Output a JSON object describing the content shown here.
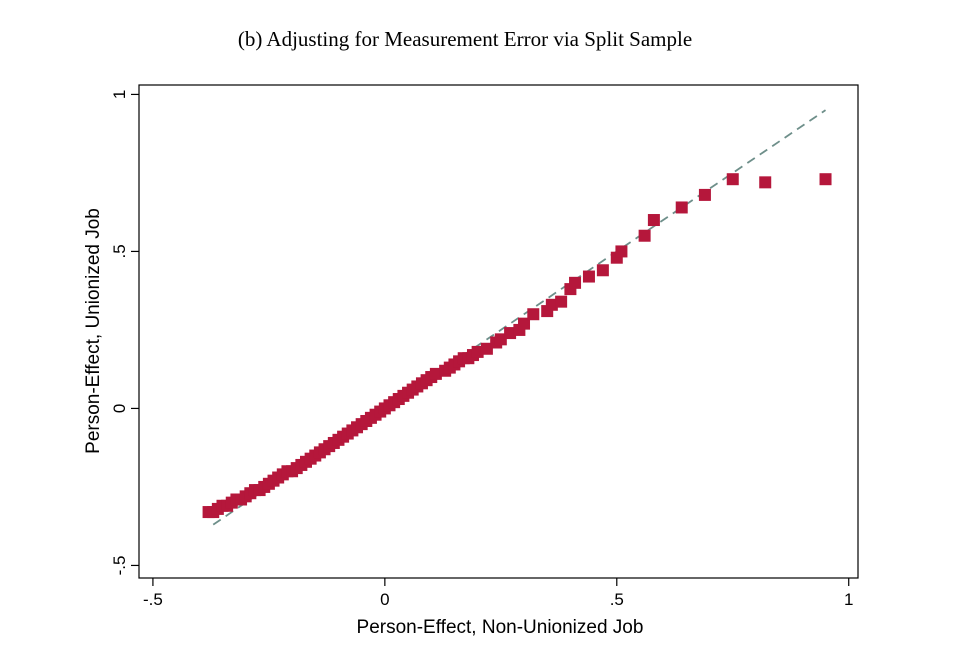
{
  "chart_data": {
    "type": "scatter",
    "title": "(b) Adjusting for Measurement Error via Split Sample",
    "xlabel": "Person-Effect, Non-Unionized Job",
    "ylabel": "Person-Effect, Unionized Job",
    "xlim": [
      -0.53,
      1.02
    ],
    "ylim": [
      -0.54,
      1.03
    ],
    "xticks": [
      -0.5,
      0,
      0.5,
      1
    ],
    "xtick_labels": [
      "-.5",
      "0",
      ".5",
      "1"
    ],
    "yticks": [
      -0.5,
      0,
      0.5,
      1
    ],
    "ytick_labels": [
      "-.5",
      "0",
      ".5",
      "1"
    ],
    "grid": false,
    "marker_color": "#b5173b",
    "reference_line_color": "#6e8f8a",
    "reference_line": {
      "style": "dashed",
      "x": [
        -0.37,
        0.95
      ],
      "y": [
        -0.37,
        0.95
      ]
    },
    "series": [
      {
        "marker": "square",
        "x": [
          -0.38,
          -0.37,
          -0.36,
          -0.35,
          -0.34,
          -0.33,
          -0.32,
          -0.31,
          -0.3,
          -0.29,
          -0.28,
          -0.27,
          -0.26,
          -0.25,
          -0.24,
          -0.23,
          -0.22,
          -0.21,
          -0.2,
          -0.19,
          -0.18,
          -0.17,
          -0.16,
          -0.15,
          -0.14,
          -0.13,
          -0.12,
          -0.11,
          -0.1,
          -0.09,
          -0.08,
          -0.07,
          -0.06,
          -0.05,
          -0.04,
          -0.03,
          -0.02,
          -0.01,
          0.0,
          0.01,
          0.02,
          0.03,
          0.04,
          0.05,
          0.06,
          0.07,
          0.08,
          0.09,
          0.1,
          0.11,
          0.13,
          0.14,
          0.15,
          0.16,
          0.17,
          0.18,
          0.19,
          0.2,
          0.22,
          0.24,
          0.25,
          0.27,
          0.29,
          0.3,
          0.32,
          0.35,
          0.36,
          0.38,
          0.4,
          0.41,
          0.44,
          0.47,
          0.5,
          0.51,
          0.56,
          0.58,
          0.64,
          0.69,
          0.75,
          0.82,
          0.95
        ],
        "y": [
          -0.33,
          -0.33,
          -0.32,
          -0.31,
          -0.31,
          -0.3,
          -0.29,
          -0.29,
          -0.28,
          -0.27,
          -0.26,
          -0.26,
          -0.25,
          -0.24,
          -0.23,
          -0.22,
          -0.21,
          -0.2,
          -0.2,
          -0.19,
          -0.18,
          -0.17,
          -0.16,
          -0.15,
          -0.14,
          -0.13,
          -0.12,
          -0.11,
          -0.1,
          -0.09,
          -0.08,
          -0.07,
          -0.06,
          -0.05,
          -0.04,
          -0.03,
          -0.02,
          -0.01,
          0.0,
          0.01,
          0.02,
          0.03,
          0.04,
          0.05,
          0.06,
          0.07,
          0.08,
          0.09,
          0.1,
          0.11,
          0.12,
          0.13,
          0.14,
          0.15,
          0.16,
          0.16,
          0.17,
          0.18,
          0.19,
          0.21,
          0.22,
          0.24,
          0.25,
          0.27,
          0.3,
          0.31,
          0.33,
          0.34,
          0.38,
          0.4,
          0.42,
          0.44,
          0.48,
          0.5,
          0.55,
          0.6,
          0.64,
          0.68,
          0.73,
          0.72,
          0.73
        ]
      }
    ]
  }
}
